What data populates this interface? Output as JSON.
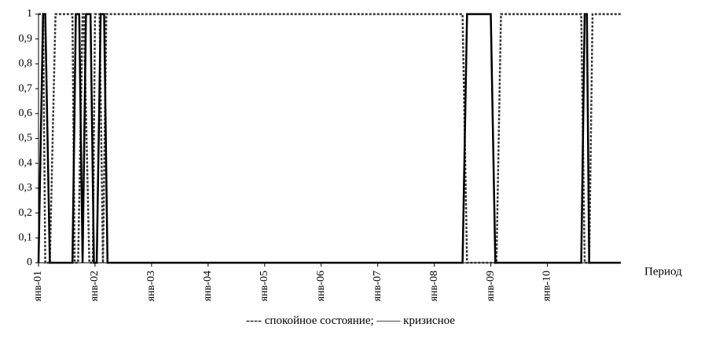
{
  "chart_data": {
    "type": "line",
    "xlabel": "Период",
    "ylabel": "",
    "ylim": [
      0,
      1
    ],
    "yticks": [
      "0",
      "0,1",
      "0,2",
      "0,3",
      "0,4",
      "0,5",
      "0,6",
      "0,7",
      "0,8",
      "0,9",
      "1"
    ],
    "xtick_labels": [
      "янв-01",
      "янв-02",
      "янв-03",
      "янв-04",
      "янв-05",
      "янв-06",
      "янв-07",
      "янв-08",
      "янв-09",
      "янв-10"
    ],
    "xlim": [
      2001,
      2011.3
    ],
    "legend_text": "---- спокойное состояние; —— кризисное",
    "series": [
      {
        "name": "спокойное состояние",
        "style": "dashed",
        "x": [
          2001.0,
          2001.08,
          2001.12,
          2001.2,
          2001.3,
          2001.6,
          2001.64,
          2001.7,
          2001.78,
          2001.8,
          2001.9,
          2001.96,
          2002.0,
          2002.08,
          2002.14,
          2002.2,
          2008.5,
          2008.58,
          2009.1,
          2009.18,
          2010.6,
          2010.66,
          2010.74,
          2010.8,
          2011.3
        ],
        "values": [
          1,
          1,
          0,
          0,
          1,
          1,
          0,
          0,
          1,
          1,
          0,
          0,
          1,
          1,
          0,
          1,
          1,
          0,
          0,
          1,
          1,
          0,
          0,
          1,
          1
        ]
      },
      {
        "name": "кризисное",
        "style": "solid",
        "x": [
          2001.0,
          2001.08,
          2001.12,
          2001.2,
          2001.6,
          2001.66,
          2001.72,
          2001.78,
          2001.84,
          2001.92,
          2001.98,
          2002.03,
          2002.1,
          2002.16,
          2002.22,
          2008.5,
          2008.58,
          2009.0,
          2009.08,
          2010.6,
          2010.66,
          2010.7,
          2010.74,
          2011.3
        ],
        "values": [
          0,
          1,
          1,
          0,
          0,
          1,
          1,
          0,
          1,
          1,
          0,
          0,
          1,
          1,
          0,
          0,
          1,
          1,
          0,
          0,
          1,
          1,
          0,
          0
        ]
      }
    ],
    "grid": false
  }
}
